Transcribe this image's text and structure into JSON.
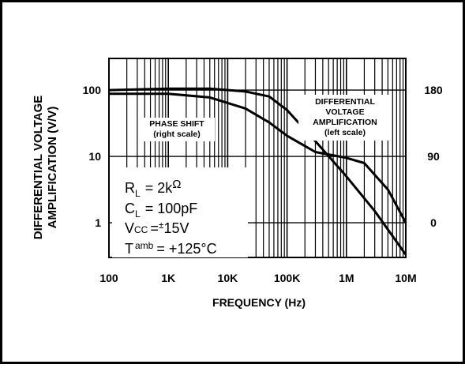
{
  "chart_data": {
    "type": "line",
    "xlabel": "FREQUENCY (Hz)",
    "ylabel_line1": "DIFFERENTIAL VOLTAGE",
    "ylabel_line2": "AMPLIFICATION (V/V)",
    "x_scale": "log",
    "xlim": [
      100,
      10000000
    ],
    "x_ticks": [
      {
        "value": 100,
        "label": "100"
      },
      {
        "value": 1000,
        "label": "1K"
      },
      {
        "value": 10000,
        "label": "10K"
      },
      {
        "value": 100000,
        "label": "100K"
      },
      {
        "value": 1000000,
        "label": "1M"
      },
      {
        "value": 10000000,
        "label": "10M"
      }
    ],
    "y_scale": "log",
    "ylim": [
      0.3,
      300
    ],
    "y_ticks": [
      {
        "value": 100,
        "label": "100"
      },
      {
        "value": 10,
        "label": "10"
      },
      {
        "value": 1,
        "label": "1"
      }
    ],
    "y2_ticks": [
      {
        "value": 180,
        "label": "180"
      },
      {
        "value": 90,
        "label": "90"
      },
      {
        "value": 0,
        "label": "0"
      }
    ],
    "grid": true,
    "series": [
      {
        "name": "DIFFERENTIAL VOLTAGE AMPLIFICATION (left scale)",
        "axis": "left",
        "x": [
          100,
          1000,
          5000,
          20000,
          50000,
          100000,
          300000,
          1000000,
          3000000,
          10000000
        ],
        "y": [
          100,
          105,
          105,
          95,
          80,
          50,
          17,
          5,
          1.5,
          0.33
        ]
      },
      {
        "name": "PHASE SHIFT (right scale)",
        "axis": "right",
        "x": [
          100,
          1000,
          5000,
          20000,
          50000,
          100000,
          300000,
          1000000,
          2000000,
          5000000,
          10000000
        ],
        "y": [
          175,
          175,
          170,
          155,
          136,
          118,
          96,
          88,
          81,
          45,
          0
        ]
      }
    ],
    "annotations": {
      "phase_line1": "PHASE SHIFT",
      "phase_line2": "(right scale)",
      "dva_line1": "DIFFERENTIAL",
      "dva_line2": "VOLTAGE",
      "dva_line3": "AMPLIFICATION",
      "dva_line4": "(left scale)"
    },
    "conditions": {
      "rl_prefix": "R",
      "rl_sub": "L",
      "rl_value": "= 2k",
      "rl_unit": "Ω",
      "cl_prefix": "C",
      "cl_sub": "L",
      "cl_value": "= 100pF",
      "vcc_prefix": "V",
      "vcc_sub": "CC",
      "vcc_eq": "=",
      "vcc_pm": "±",
      "vcc_value": "15V",
      "t_prefix": "T",
      "t_sup": "amb",
      "t_value": "= +125°C"
    }
  }
}
